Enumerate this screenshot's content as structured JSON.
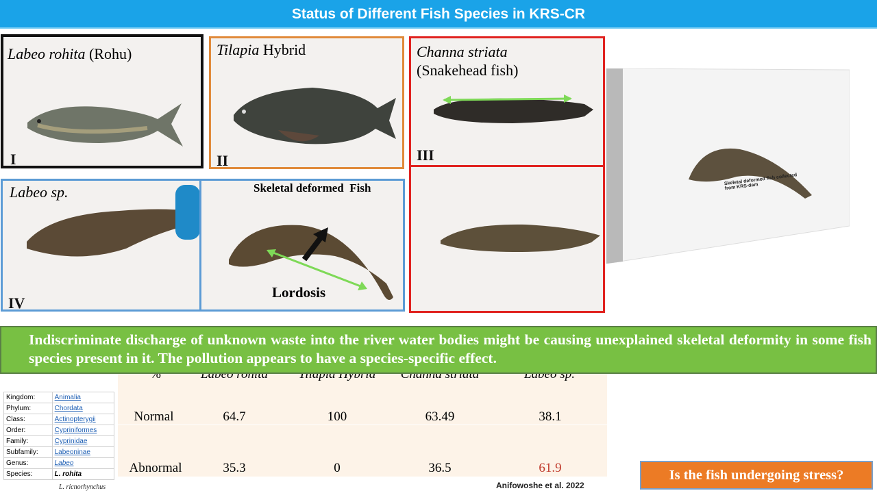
{
  "title": "Status of Different Fish Species in KRS-CR",
  "panels": {
    "p1": {
      "name_italic": "Labeo rohita",
      "name_rest": " (Rohu)",
      "roman": "I"
    },
    "p2": {
      "name_italic": "Tilapia",
      "name_rest": " Hybrid",
      "roman": "II"
    },
    "p3": {
      "name_italic": "Channa striata",
      "name_rest": "(Snakehead fish)",
      "roman": "III"
    },
    "p4": {
      "name_italic": "Labeo sp.",
      "roman": "IV",
      "deformed_title": "Skeletal deformed  Fish",
      "lordosis": "Lordosis"
    },
    "photo": {
      "caption": "Skeletal deformed fish collected from KRS-dam"
    }
  },
  "banner": "Indiscriminate discharge of unknown waste into the river water bodies might be causing unexplained skeletal deformity in some fish species present in it. The pollution appears to have a species-specific effect.",
  "table": {
    "header": [
      "%",
      "Labeo rohita",
      "Tilapia Hybrid",
      "Channa striata",
      "Labeo sp."
    ],
    "rows": [
      {
        "label": "Normal",
        "values": [
          "64.7",
          "100",
          "63.49",
          "38.1"
        ]
      },
      {
        "label": "Abnormal",
        "values": [
          "35.3",
          "0",
          "36.5",
          "61.9"
        ]
      }
    ]
  },
  "taxonomy": [
    {
      "key": "Kingdom:",
      "value": "Animalia"
    },
    {
      "key": "Phylum:",
      "value": "Chordata"
    },
    {
      "key": "Class:",
      "value": "Actinopterygii"
    },
    {
      "key": "Order:",
      "value": "Cypriniformes"
    },
    {
      "key": "Family:",
      "value": "Cyprinidae"
    },
    {
      "key": "Subfamily:",
      "value": "Labeoninae"
    },
    {
      "key": "Genus:",
      "value": "Labeo"
    },
    {
      "key": "Species:",
      "value": "L. rohita"
    }
  ],
  "taxonomy_caption": "L. ricnorhynchus",
  "citation": "Anifowoshe et al. 2022",
  "question": "Is the fish undergoing stress?",
  "colors": {
    "title_bar": "#1aa3e8",
    "banner": "#78c043",
    "question": "#ec7b25",
    "highlight": "#c0392b",
    "arrow": "#7ed957"
  }
}
